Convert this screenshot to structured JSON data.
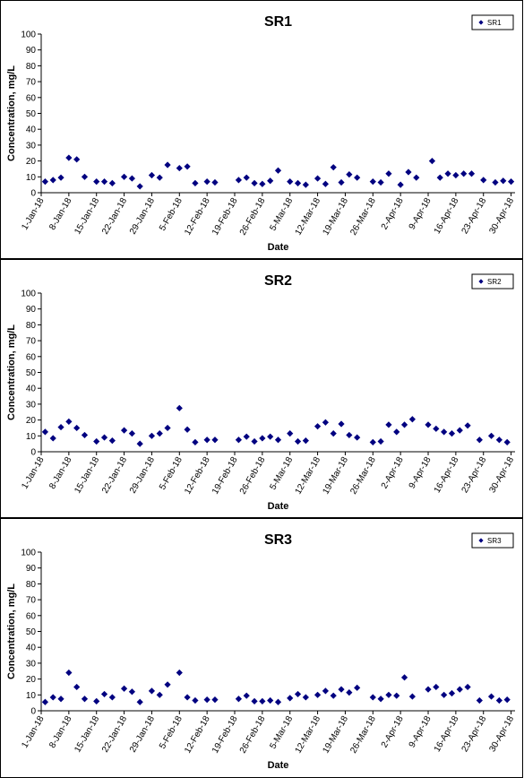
{
  "chart_data": [
    {
      "type": "scatter",
      "title": "SR1",
      "xlabel": "Date",
      "ylabel": "Concentration, mg/L",
      "ylim": [
        0,
        100
      ],
      "yticks": [
        0,
        10,
        20,
        30,
        40,
        50,
        60,
        70,
        80,
        90,
        100
      ],
      "xlim": [
        "2018-01-01",
        "2018-05-01"
      ],
      "xtick_labels": [
        "1-Jan-18",
        "8-Jan-18",
        "15-Jan-18",
        "22-Jan-18",
        "29-Jan-18",
        "5-Feb-18",
        "12-Feb-18",
        "19-Feb-18",
        "26-Feb-18",
        "5-Mar-18",
        "12-Mar-18",
        "19-Mar-18",
        "26-Mar-18",
        "2-Apr-18",
        "9-Apr-18",
        "16-Apr-18",
        "23-Apr-18",
        "30-Apr-18"
      ],
      "legend_position": "top-right",
      "series": [
        {
          "name": "SR1",
          "color": "#000080",
          "marker": "diamond",
          "points": [
            {
              "x": "2018-01-02",
              "y": 7
            },
            {
              "x": "2018-01-04",
              "y": 8
            },
            {
              "x": "2018-01-06",
              "y": 9.5
            },
            {
              "x": "2018-01-08",
              "y": 22
            },
            {
              "x": "2018-01-10",
              "y": 21
            },
            {
              "x": "2018-01-12",
              "y": 10
            },
            {
              "x": "2018-01-15",
              "y": 7
            },
            {
              "x": "2018-01-17",
              "y": 7
            },
            {
              "x": "2018-01-19",
              "y": 6
            },
            {
              "x": "2018-01-22",
              "y": 10
            },
            {
              "x": "2018-01-24",
              "y": 9
            },
            {
              "x": "2018-01-26",
              "y": 4
            },
            {
              "x": "2018-01-29",
              "y": 11
            },
            {
              "x": "2018-01-31",
              "y": 9.5
            },
            {
              "x": "2018-02-02",
              "y": 17.5
            },
            {
              "x": "2018-02-05",
              "y": 15.5
            },
            {
              "x": "2018-02-07",
              "y": 16.5
            },
            {
              "x": "2018-02-09",
              "y": 6
            },
            {
              "x": "2018-02-12",
              "y": 7
            },
            {
              "x": "2018-02-14",
              "y": 6.5
            },
            {
              "x": "2018-02-20",
              "y": 8
            },
            {
              "x": "2018-02-22",
              "y": 9.5
            },
            {
              "x": "2018-02-24",
              "y": 6
            },
            {
              "x": "2018-02-26",
              "y": 5.5
            },
            {
              "x": "2018-02-28",
              "y": 7.5
            },
            {
              "x": "2018-03-02",
              "y": 14
            },
            {
              "x": "2018-03-05",
              "y": 7
            },
            {
              "x": "2018-03-07",
              "y": 6
            },
            {
              "x": "2018-03-09",
              "y": 5
            },
            {
              "x": "2018-03-12",
              "y": 9
            },
            {
              "x": "2018-03-14",
              "y": 5.5
            },
            {
              "x": "2018-03-16",
              "y": 16
            },
            {
              "x": "2018-03-18",
              "y": 6.5
            },
            {
              "x": "2018-03-20",
              "y": 11.5
            },
            {
              "x": "2018-03-22",
              "y": 9.5
            },
            {
              "x": "2018-03-26",
              "y": 7
            },
            {
              "x": "2018-03-28",
              "y": 6.5
            },
            {
              "x": "2018-03-30",
              "y": 12
            },
            {
              "x": "2018-04-02",
              "y": 5
            },
            {
              "x": "2018-04-04",
              "y": 13
            },
            {
              "x": "2018-04-06",
              "y": 9.5
            },
            {
              "x": "2018-04-10",
              "y": 20
            },
            {
              "x": "2018-04-12",
              "y": 9.5
            },
            {
              "x": "2018-04-14",
              "y": 12
            },
            {
              "x": "2018-04-16",
              "y": 11
            },
            {
              "x": "2018-04-18",
              "y": 12
            },
            {
              "x": "2018-04-20",
              "y": 12
            },
            {
              "x": "2018-04-23",
              "y": 8
            },
            {
              "x": "2018-04-26",
              "y": 6.5
            },
            {
              "x": "2018-04-28",
              "y": 7.5
            },
            {
              "x": "2018-04-30",
              "y": 7
            }
          ]
        }
      ]
    },
    {
      "type": "scatter",
      "title": "SR2",
      "xlabel": "Date",
      "ylabel": "Concentration, mg/L",
      "ylim": [
        0,
        100
      ],
      "yticks": [
        0,
        10,
        20,
        30,
        40,
        50,
        60,
        70,
        80,
        90,
        100
      ],
      "xlim": [
        "2018-01-01",
        "2018-05-01"
      ],
      "xtick_labels": [
        "1-Jan-18",
        "8-Jan-18",
        "15-Jan-18",
        "22-Jan-18",
        "29-Jan-18",
        "5-Feb-18",
        "12-Feb-18",
        "19-Feb-18",
        "26-Feb-18",
        "5-Mar-18",
        "12-Mar-18",
        "19-Mar-18",
        "26-Mar-18",
        "2-Apr-18",
        "9-Apr-18",
        "16-Apr-18",
        "23-Apr-18",
        "30-Apr-18"
      ],
      "legend_position": "top-right",
      "series": [
        {
          "name": "SR2",
          "color": "#000080",
          "marker": "diamond",
          "points": [
            {
              "x": "2018-01-02",
              "y": 12.5
            },
            {
              "x": "2018-01-04",
              "y": 8.5
            },
            {
              "x": "2018-01-06",
              "y": 15.5
            },
            {
              "x": "2018-01-08",
              "y": 19
            },
            {
              "x": "2018-01-10",
              "y": 15
            },
            {
              "x": "2018-01-12",
              "y": 10.5
            },
            {
              "x": "2018-01-15",
              "y": 6.5
            },
            {
              "x": "2018-01-17",
              "y": 9
            },
            {
              "x": "2018-01-19",
              "y": 7
            },
            {
              "x": "2018-01-22",
              "y": 13.5
            },
            {
              "x": "2018-01-24",
              "y": 11.5
            },
            {
              "x": "2018-01-26",
              "y": 5
            },
            {
              "x": "2018-01-29",
              "y": 10
            },
            {
              "x": "2018-01-31",
              "y": 11.5
            },
            {
              "x": "2018-02-02",
              "y": 15
            },
            {
              "x": "2018-02-05",
              "y": 27.5
            },
            {
              "x": "2018-02-07",
              "y": 14
            },
            {
              "x": "2018-02-09",
              "y": 6
            },
            {
              "x": "2018-02-12",
              "y": 7.5
            },
            {
              "x": "2018-02-14",
              "y": 7.5
            },
            {
              "x": "2018-02-20",
              "y": 7.5
            },
            {
              "x": "2018-02-22",
              "y": 9.5
            },
            {
              "x": "2018-02-24",
              "y": 6.5
            },
            {
              "x": "2018-02-26",
              "y": 8.5
            },
            {
              "x": "2018-02-28",
              "y": 9.5
            },
            {
              "x": "2018-03-02",
              "y": 7.5
            },
            {
              "x": "2018-03-05",
              "y": 11.5
            },
            {
              "x": "2018-03-07",
              "y": 6.5
            },
            {
              "x": "2018-03-09",
              "y": 7
            },
            {
              "x": "2018-03-12",
              "y": 16
            },
            {
              "x": "2018-03-14",
              "y": 18.5
            },
            {
              "x": "2018-03-16",
              "y": 11.5
            },
            {
              "x": "2018-03-18",
              "y": 17.5
            },
            {
              "x": "2018-03-20",
              "y": 10.5
            },
            {
              "x": "2018-03-22",
              "y": 9
            },
            {
              "x": "2018-03-26",
              "y": 6
            },
            {
              "x": "2018-03-28",
              "y": 6.5
            },
            {
              "x": "2018-03-30",
              "y": 17
            },
            {
              "x": "2018-04-01",
              "y": 12.5
            },
            {
              "x": "2018-04-03",
              "y": 17
            },
            {
              "x": "2018-04-05",
              "y": 20.5
            },
            {
              "x": "2018-04-09",
              "y": 17
            },
            {
              "x": "2018-04-11",
              "y": 14.5
            },
            {
              "x": "2018-04-13",
              "y": 12.5
            },
            {
              "x": "2018-04-15",
              "y": 11.5
            },
            {
              "x": "2018-04-17",
              "y": 13.5
            },
            {
              "x": "2018-04-19",
              "y": 16.5
            },
            {
              "x": "2018-04-22",
              "y": 7.5
            },
            {
              "x": "2018-04-25",
              "y": 10
            },
            {
              "x": "2018-04-27",
              "y": 7.5
            },
            {
              "x": "2018-04-29",
              "y": 6
            }
          ]
        }
      ]
    },
    {
      "type": "scatter",
      "title": "SR3",
      "xlabel": "Date",
      "ylabel": "Concentration, mg/L",
      "ylim": [
        0,
        100
      ],
      "yticks": [
        0,
        10,
        20,
        30,
        40,
        50,
        60,
        70,
        80,
        90,
        100
      ],
      "xlim": [
        "2018-01-01",
        "2018-05-01"
      ],
      "xtick_labels": [
        "1-Jan-18",
        "8-Jan-18",
        "15-Jan-18",
        "22-Jan-18",
        "29-Jan-18",
        "5-Feb-18",
        "12-Feb-18",
        "19-Feb-18",
        "26-Feb-18",
        "5-Mar-18",
        "12-Mar-18",
        "19-Mar-18",
        "26-Mar-18",
        "2-Apr-18",
        "9-Apr-18",
        "16-Apr-18",
        "23-Apr-18",
        "30-Apr-18"
      ],
      "legend_position": "top-right",
      "series": [
        {
          "name": "SR3",
          "color": "#000080",
          "marker": "diamond",
          "points": [
            {
              "x": "2018-01-02",
              "y": 5.5
            },
            {
              "x": "2018-01-04",
              "y": 8.5
            },
            {
              "x": "2018-01-06",
              "y": 7.5
            },
            {
              "x": "2018-01-08",
              "y": 24
            },
            {
              "x": "2018-01-10",
              "y": 15
            },
            {
              "x": "2018-01-12",
              "y": 7.5
            },
            {
              "x": "2018-01-15",
              "y": 6
            },
            {
              "x": "2018-01-17",
              "y": 10.5
            },
            {
              "x": "2018-01-19",
              "y": 8.5
            },
            {
              "x": "2018-01-22",
              "y": 14
            },
            {
              "x": "2018-01-24",
              "y": 12
            },
            {
              "x": "2018-01-26",
              "y": 5.5
            },
            {
              "x": "2018-01-29",
              "y": 12.5
            },
            {
              "x": "2018-01-31",
              "y": 10
            },
            {
              "x": "2018-02-02",
              "y": 16.5
            },
            {
              "x": "2018-02-05",
              "y": 24
            },
            {
              "x": "2018-02-07",
              "y": 8.5
            },
            {
              "x": "2018-02-09",
              "y": 6.5
            },
            {
              "x": "2018-02-12",
              "y": 7
            },
            {
              "x": "2018-02-14",
              "y": 7
            },
            {
              "x": "2018-02-20",
              "y": 7.5
            },
            {
              "x": "2018-02-22",
              "y": 9.5
            },
            {
              "x": "2018-02-24",
              "y": 6
            },
            {
              "x": "2018-02-26",
              "y": 6
            },
            {
              "x": "2018-02-28",
              "y": 6.5
            },
            {
              "x": "2018-03-02",
              "y": 5.5
            },
            {
              "x": "2018-03-05",
              "y": 8
            },
            {
              "x": "2018-03-07",
              "y": 10.5
            },
            {
              "x": "2018-03-09",
              "y": 8.5
            },
            {
              "x": "2018-03-12",
              "y": 10
            },
            {
              "x": "2018-03-14",
              "y": 12.5
            },
            {
              "x": "2018-03-16",
              "y": 9.5
            },
            {
              "x": "2018-03-18",
              "y": 13.5
            },
            {
              "x": "2018-03-20",
              "y": 11.5
            },
            {
              "x": "2018-03-22",
              "y": 14.5
            },
            {
              "x": "2018-03-26",
              "y": 8.5
            },
            {
              "x": "2018-03-28",
              "y": 7.5
            },
            {
              "x": "2018-03-30",
              "y": 10
            },
            {
              "x": "2018-04-01",
              "y": 9.5
            },
            {
              "x": "2018-04-03",
              "y": 21
            },
            {
              "x": "2018-04-05",
              "y": 9
            },
            {
              "x": "2018-04-09",
              "y": 13.5
            },
            {
              "x": "2018-04-11",
              "y": 15
            },
            {
              "x": "2018-04-13",
              "y": 10
            },
            {
              "x": "2018-04-15",
              "y": 11
            },
            {
              "x": "2018-04-17",
              "y": 13.5
            },
            {
              "x": "2018-04-19",
              "y": 15
            },
            {
              "x": "2018-04-22",
              "y": 6.5
            },
            {
              "x": "2018-04-25",
              "y": 9
            },
            {
              "x": "2018-04-27",
              "y": 6.5
            },
            {
              "x": "2018-04-29",
              "y": 7
            }
          ]
        }
      ]
    }
  ]
}
